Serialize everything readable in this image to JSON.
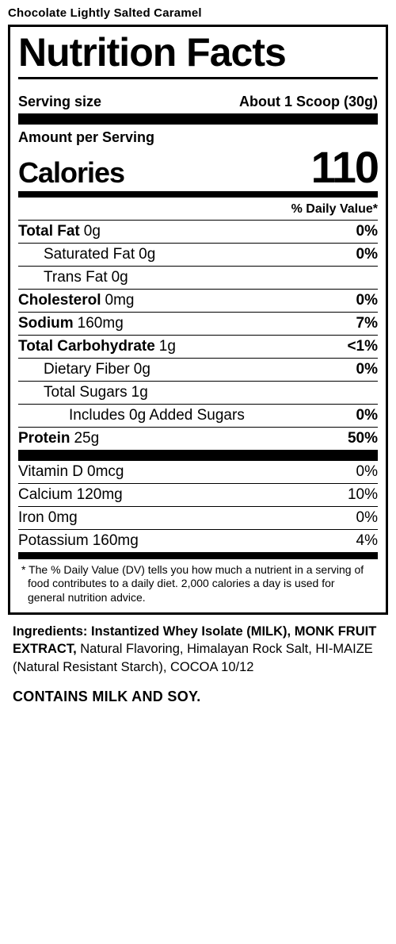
{
  "product_line": "Chocolate Lightly Salted Caramel",
  "title": "Nutrition Facts",
  "serving": {
    "label": "Serving size",
    "value": "About 1 Scoop (30g)"
  },
  "amount_per_serving": "Amount per Serving",
  "calories": {
    "label": "Calories",
    "value": "110"
  },
  "dv_header": "% Daily Value*",
  "nutrients": [
    {
      "name": "Total Fat",
      "amount": "0g",
      "pct": "0%",
      "bold": true,
      "indent": 0
    },
    {
      "name": "Saturated Fat",
      "amount": "0g",
      "pct": "0%",
      "bold": false,
      "indent": 1
    },
    {
      "name": "Trans Fat",
      "amount": "0g",
      "pct": "",
      "bold": false,
      "indent": 1
    },
    {
      "name": "Cholesterol",
      "amount": "0mg",
      "pct": "0%",
      "bold": true,
      "indent": 0
    },
    {
      "name": "Sodium",
      "amount": "160mg",
      "pct": "7%",
      "bold": true,
      "indent": 0
    },
    {
      "name": "Total Carbohydrate",
      "amount": "1g",
      "pct": "<1%",
      "bold": true,
      "indent": 0
    },
    {
      "name": "Dietary Fiber",
      "amount": "0g",
      "pct": "0%",
      "bold": false,
      "indent": 1
    },
    {
      "name": "Total Sugars",
      "amount": "1g",
      "pct": "",
      "bold": false,
      "indent": 1
    },
    {
      "name": "Includes 0g Added Sugars",
      "amount": "",
      "pct": "0%",
      "bold": false,
      "indent": 2
    },
    {
      "name": "Protein",
      "amount": "25g",
      "pct": "50%",
      "bold": true,
      "indent": 0
    }
  ],
  "vitamins": [
    {
      "name": "Vitamin D",
      "amount": "0mcg",
      "pct": "0%"
    },
    {
      "name": "Calcium",
      "amount": "120mg",
      "pct": "10%"
    },
    {
      "name": "Iron",
      "amount": "0mg",
      "pct": "0%"
    },
    {
      "name": "Potassium",
      "amount": "160mg",
      "pct": "4%"
    }
  ],
  "footnote": "* The % Daily Value (DV) tells you how much a nutrient in a serving of food contributes to a daily diet. 2,000 calories a  day is used for general nutrition advice.",
  "ingredients": {
    "lead": "Ingredients: ",
    "main": "Instantized Whey Isolate (MILK), MONK FRUIT EXTRACT, ",
    "rest": "Natural Flavoring, Himalayan Rock Salt, HI-MAIZE (Natural Resistant Starch), COCOA 10/12"
  },
  "allergen": "CONTAINS MILK AND SOY."
}
